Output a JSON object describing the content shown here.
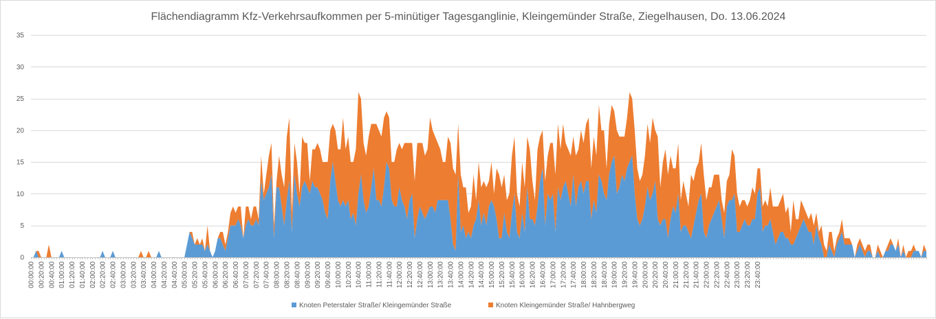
{
  "chart_data": {
    "type": "area",
    "stacked": true,
    "title": "Flächendiagramm Kfz-Verkehrsaufkommen per 5-minütiger Tagesganglinie, Kleingemünder Straße, Ziegelhausen, Do. 13.06.2024",
    "xlabel": "",
    "ylabel": "",
    "ylim": [
      0,
      35
    ],
    "yticks": [
      0,
      5,
      10,
      15,
      20,
      25,
      30,
      35
    ],
    "grid": true,
    "legend_position": "bottom",
    "x_tick_labels": [
      "00:00:00",
      "00:20:00",
      "00:40:00",
      "01:00:00",
      "01:20:00",
      "01:40:00",
      "02:00:00",
      "02:20:00",
      "02:40:00",
      "03:00:00",
      "03:20:00",
      "03:40:00",
      "04:00:00",
      "04:20:00",
      "04:40:00",
      "05:00:00",
      "05:20:00",
      "05:40:00",
      "06:00:00",
      "06:20:00",
      "06:40:00",
      "07:00:00",
      "07:20:00",
      "07:40:00",
      "08:00:00",
      "08:20:00",
      "08:40:00",
      "09:00:00",
      "09:20:00",
      "09:40:00",
      "10:00:00",
      "10:20:00",
      "10:40:00",
      "11:00:00",
      "11:20:00",
      "11:40:00",
      "12:00:00",
      "12:20:00",
      "12:40:00",
      "13:00:00",
      "13:20:00",
      "13:40:00",
      "14:00:00",
      "14:20:00",
      "14:40:00",
      "15:00:00",
      "15:20:00",
      "15:40:00",
      "16:00:00",
      "16:20:00",
      "16:40:00",
      "17:00:00",
      "17:20:00",
      "17:40:00",
      "18:00:00",
      "18:20:00",
      "18:40:00",
      "19:00:00",
      "19:20:00",
      "19:40:00",
      "20:00:00",
      "20:20:00",
      "20:40:00",
      "21:00:00",
      "21:20:00",
      "21:40:00",
      "22:00:00",
      "22:20:00",
      "22:40:00",
      "23:00:00",
      "23:20:00",
      "23:40:00"
    ],
    "series": [
      {
        "name": "Knoten Peterstaler Straße/ Kleingemünder Straße",
        "color": "#5b9bd5",
        "values": [
          0,
          0,
          1,
          0,
          0,
          0,
          0,
          0,
          0,
          0,
          0,
          0,
          1,
          0,
          0,
          0,
          0,
          0,
          0,
          0,
          0,
          0,
          0,
          0,
          0,
          0,
          0,
          0,
          1,
          0,
          0,
          0,
          1,
          0,
          0,
          0,
          0,
          0,
          0,
          0,
          0,
          0,
          0,
          0,
          0,
          0,
          0,
          0,
          0,
          0,
          1,
          0,
          0,
          0,
          0,
          0,
          0,
          0,
          0,
          0,
          0,
          2,
          4,
          3,
          2,
          2,
          2,
          2,
          1,
          2,
          1,
          0,
          1,
          3,
          3,
          2,
          1,
          3,
          5,
          5,
          5,
          6,
          5,
          3,
          5,
          6,
          5,
          5,
          6,
          5,
          12,
          9,
          10,
          11,
          13,
          3,
          11,
          11,
          8,
          5,
          9,
          12,
          4,
          13,
          10,
          8,
          11,
          12,
          11,
          10,
          12,
          11,
          11,
          10,
          9,
          7,
          6,
          12,
          15,
          12,
          9,
          8,
          9,
          8,
          9,
          6,
          7,
          5,
          10,
          13,
          9,
          7,
          8,
          11,
          14,
          9,
          9,
          8,
          11,
          15,
          14,
          9,
          8,
          8,
          11,
          9,
          8,
          6,
          9,
          10,
          3,
          6,
          8,
          7,
          6,
          7,
          8,
          8,
          7,
          9,
          9,
          9,
          9,
          9,
          6,
          2,
          1,
          13,
          4,
          5,
          3,
          4,
          3,
          5,
          6,
          9,
          5,
          7,
          5,
          8,
          9,
          8,
          6,
          3,
          3,
          7,
          4,
          3,
          7,
          10,
          4,
          3,
          7,
          4,
          11,
          6,
          6,
          5,
          8,
          12,
          14,
          5,
          10,
          9,
          10,
          4,
          11,
          9,
          11,
          12,
          10,
          8,
          13,
          8,
          11,
          12,
          10,
          12,
          12,
          6,
          9,
          7,
          13,
          12,
          10,
          9,
          13,
          15,
          16,
          10,
          11,
          13,
          12,
          14,
          15,
          16,
          10,
          6,
          5,
          6,
          8,
          11,
          9,
          10,
          12,
          6,
          5,
          6,
          6,
          3,
          6,
          8,
          7,
          10,
          4,
          5,
          5,
          4,
          3,
          5,
          7,
          9,
          10,
          4,
          3,
          5,
          6,
          7,
          8,
          9,
          6,
          3,
          8,
          9,
          9,
          10,
          4,
          4,
          5,
          6,
          5,
          5,
          6,
          6,
          10,
          11,
          4,
          5,
          5,
          6,
          4,
          2,
          3,
          4,
          4,
          3,
          3,
          2,
          2,
          3,
          4,
          5,
          6,
          5,
          4,
          4,
          2,
          5,
          3,
          2,
          0,
          0,
          2,
          1,
          0,
          2,
          3,
          4,
          2,
          2,
          2,
          2,
          0,
          1,
          2,
          1,
          0,
          1,
          1,
          0,
          0,
          1,
          0,
          0,
          1,
          1,
          2,
          2,
          1,
          2,
          0,
          1,
          0,
          0,
          0,
          1,
          1,
          1,
          0,
          1,
          1
        ]
      },
      {
        "name": "Knoten Kleingemünder Straße/ Hahnbergweg",
        "color": "#ed7d31",
        "values": [
          0,
          0,
          0,
          1,
          0,
          0,
          0,
          2,
          0,
          0,
          0,
          0,
          0,
          0,
          0,
          0,
          0,
          0,
          0,
          0,
          0,
          0,
          0,
          0,
          0,
          0,
          0,
          0,
          0,
          0,
          0,
          0,
          0,
          0,
          0,
          0,
          0,
          0,
          0,
          0,
          0,
          0,
          0,
          1,
          0,
          0,
          1,
          0,
          0,
          0,
          0,
          0,
          0,
          0,
          0,
          0,
          0,
          0,
          0,
          0,
          0,
          0,
          0,
          1,
          0,
          1,
          0,
          1,
          0,
          3,
          0,
          0,
          0,
          0,
          1,
          2,
          1,
          1,
          2,
          3,
          2,
          2,
          3,
          0,
          3,
          2,
          1,
          3,
          2,
          1,
          4,
          1,
          3,
          5,
          5,
          2,
          1,
          5,
          5,
          6,
          10,
          10,
          3,
          5,
          5,
          2,
          8,
          6,
          7,
          2,
          5,
          6,
          7,
          7,
          6,
          8,
          9,
          8,
          6,
          8,
          8,
          9,
          13,
          9,
          10,
          9,
          8,
          12,
          16,
          12,
          9,
          9,
          11,
          10,
          7,
          12,
          11,
          11,
          11,
          8,
          8,
          6,
          7,
          9,
          7,
          8,
          10,
          12,
          9,
          8,
          9,
          12,
          10,
          11,
          10,
          10,
          14,
          12,
          12,
          9,
          8,
          6,
          6,
          10,
          12,
          12,
          12,
          8,
          9,
          6,
          8,
          3,
          5,
          8,
          3,
          6,
          6,
          5,
          6,
          4,
          6,
          2,
          8,
          10,
          8,
          6,
          5,
          7,
          9,
          9,
          6,
          5,
          8,
          7,
          8,
          11,
          6,
          4,
          9,
          7,
          6,
          7,
          6,
          9,
          8,
          9,
          10,
          8,
          10,
          6,
          7,
          8,
          6,
          8,
          6,
          8,
          8,
          9,
          10,
          8,
          10,
          9,
          11,
          8,
          10,
          5,
          8,
          9,
          7,
          10,
          8,
          6,
          7,
          8,
          11,
          9,
          10,
          8,
          7,
          7,
          8,
          10,
          9,
          12,
          8,
          13,
          6,
          9,
          11,
          10,
          10,
          6,
          7,
          8,
          5,
          7,
          5,
          4,
          10,
          7,
          7,
          6,
          8,
          9,
          6,
          6,
          5,
          6,
          5,
          4,
          3,
          4,
          4,
          4,
          8,
          6,
          6,
          4,
          4,
          3,
          3,
          4,
          5,
          4,
          4,
          3,
          4,
          4,
          3,
          5,
          4,
          6,
          5,
          5,
          6,
          4,
          5,
          2,
          7,
          3,
          2,
          4,
          2,
          2,
          2,
          3,
          3,
          2,
          1,
          3,
          2,
          1,
          2,
          3,
          1,
          1,
          1,
          2,
          1,
          1,
          1,
          0,
          0,
          1,
          1,
          1,
          1,
          1,
          1,
          0,
          0,
          1,
          1,
          0,
          0,
          1,
          1,
          0,
          0,
          1,
          0,
          1,
          0,
          1,
          1,
          1,
          0,
          0,
          0,
          1,
          0,
          0,
          0,
          1,
          1,
          0,
          0
        ]
      }
    ]
  }
}
